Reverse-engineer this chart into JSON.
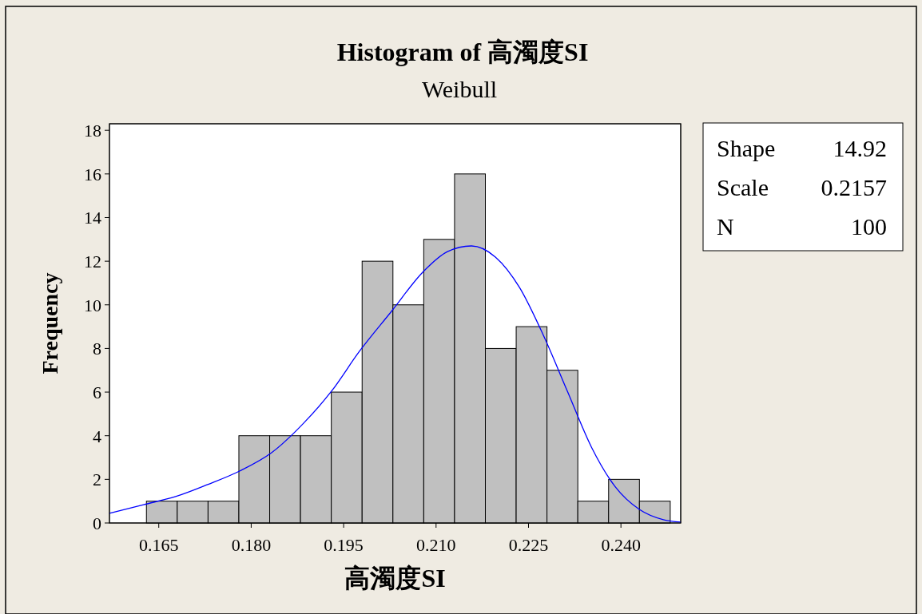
{
  "chart_data": {
    "type": "histogram",
    "title": "Histogram of 高濁度SI",
    "subtitle": "Weibull",
    "xlabel": "高濁度SI",
    "ylabel": "Frequency",
    "bins": [
      0.163,
      0.168,
      0.173,
      0.178,
      0.183,
      0.188,
      0.193,
      0.198,
      0.203,
      0.208,
      0.213,
      0.218,
      0.223,
      0.228,
      0.233,
      0.238,
      0.243,
      0.248
    ],
    "values": [
      1,
      1,
      1,
      4,
      4,
      4,
      6,
      12,
      10,
      13,
      16,
      8,
      9,
      7,
      1,
      2,
      1
    ],
    "color": "#c0c0c0",
    "series": [
      {
        "type": "line",
        "color": "#0000ff",
        "x": [
          0.157,
          0.16253,
          0.16773,
          0.17292,
          0.17811,
          0.1833,
          0.18849,
          0.19303,
          0.19757,
          0.20276,
          0.20795,
          0.21185,
          0.21574,
          0.21963,
          0.22353,
          0.22742,
          0.23131,
          0.23521,
          0.2391,
          0.24299,
          0.24688,
          0.2497
        ],
        "values": [
          0.44,
          0.84,
          1.21,
          1.76,
          2.38,
          3.22,
          4.57,
          6.04,
          7.87,
          9.7,
          11.53,
          12.44,
          12.7,
          12.19,
          10.8,
          8.6,
          6.04,
          3.48,
          1.65,
          0.62,
          0.15,
          0.04
        ]
      }
    ],
    "xlim": [
      0.157,
      0.2497
    ],
    "xticks": [
      0.165,
      {
        "value": 0.18,
        "label": "0.180"
      },
      0.195,
      {
        "value": 0.21,
        "label": "0.210"
      },
      0.225,
      {
        "value": 0.24,
        "label": "0.240"
      }
    ],
    "ylim": [
      0,
      18.3
    ],
    "yticks": [
      0,
      2,
      4,
      6,
      8,
      10,
      12,
      14,
      16,
      18
    ],
    "annotations": [
      "Shape 14.92",
      "Scale 0.2157",
      "N 100"
    ],
    "grid": false,
    "marker": "none",
    "line_style": "solid"
  }
}
